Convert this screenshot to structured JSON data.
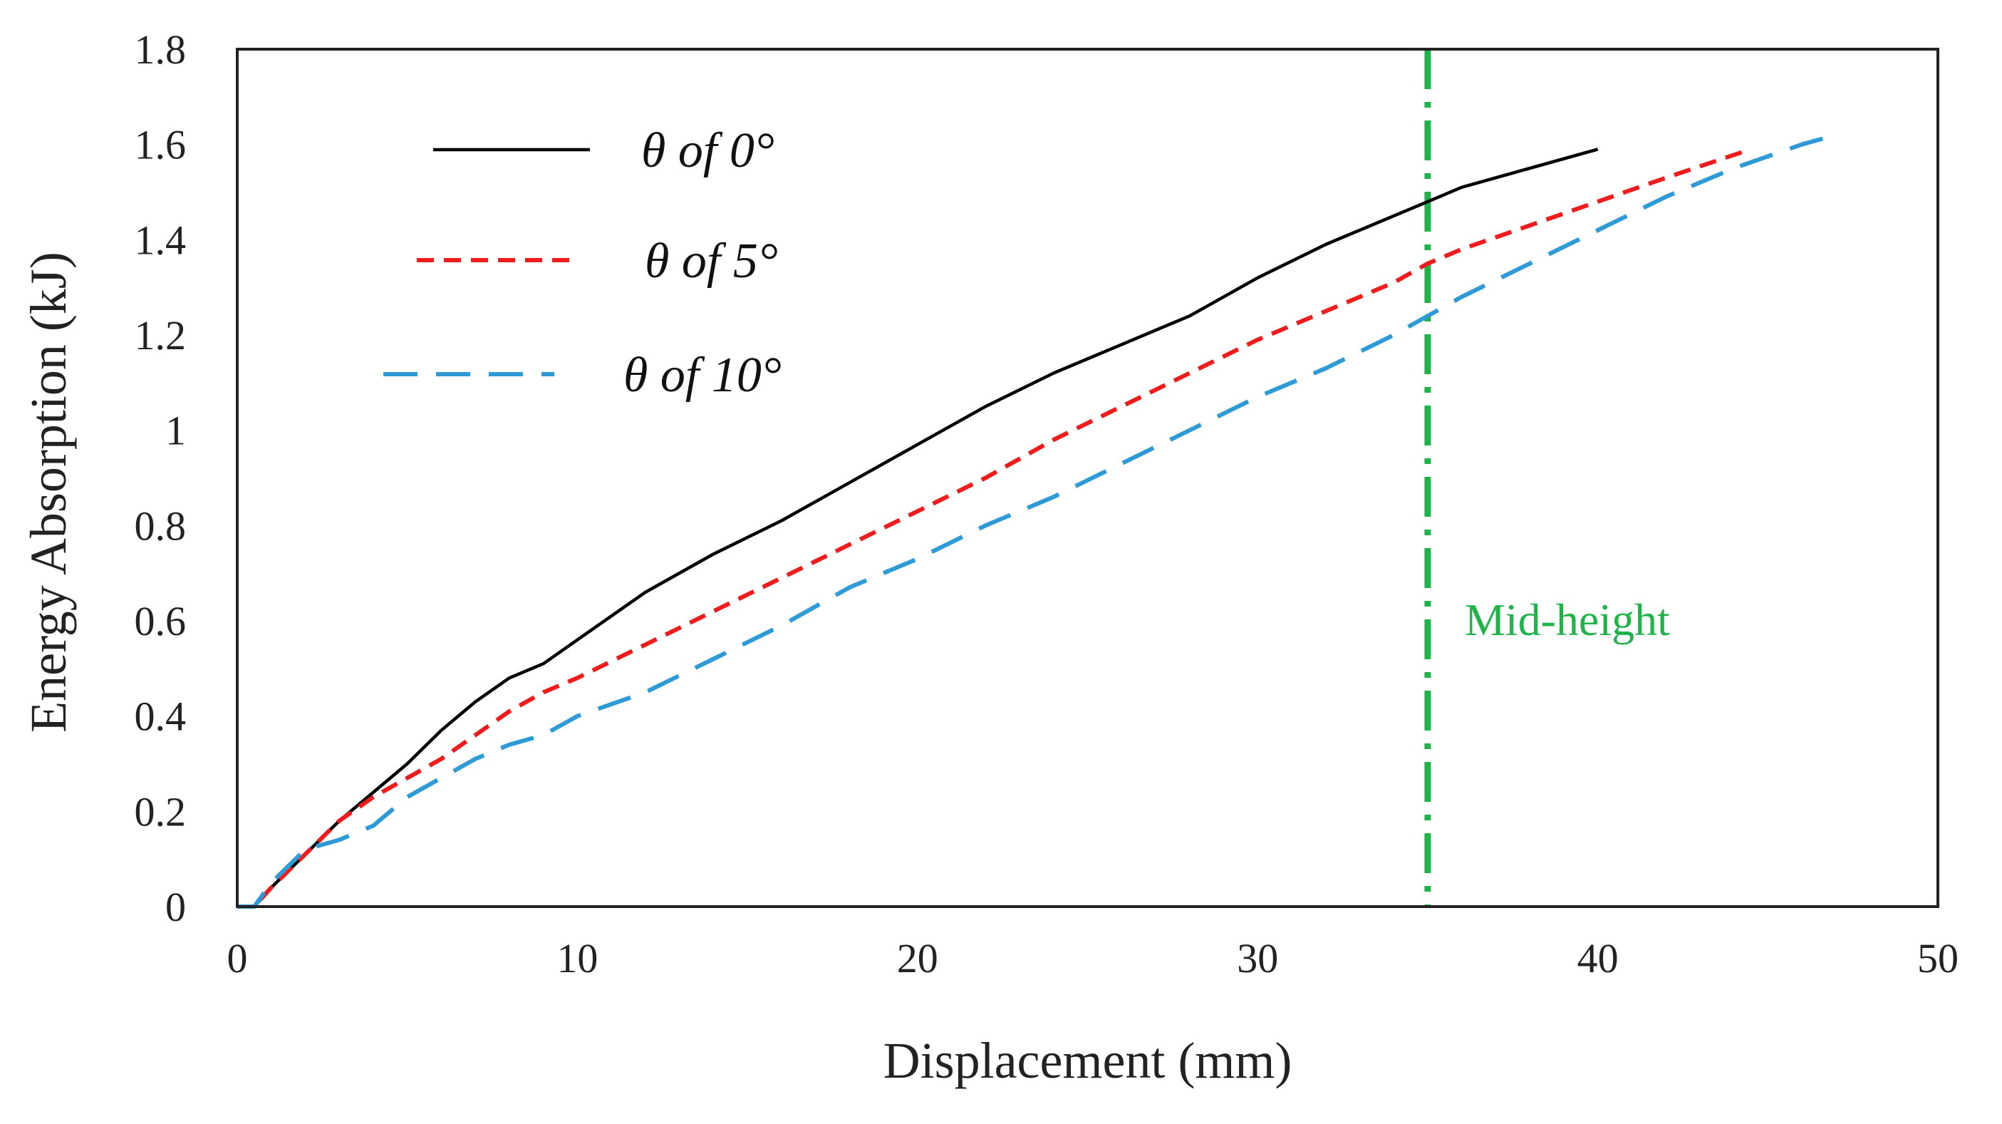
{
  "chart_data": {
    "type": "line",
    "title": "",
    "xlabel": "Displacement (mm)",
    "ylabel": "Energy Absorption (kJ)",
    "xlim": [
      0,
      50
    ],
    "ylim": [
      0,
      1.8
    ],
    "xticks": [
      0,
      10,
      20,
      30,
      40,
      50
    ],
    "yticks": [
      0,
      0.2,
      0.4,
      0.6,
      0.8,
      1,
      1.2,
      1.4,
      1.6,
      1.8
    ],
    "xtick_labels": [
      "0",
      "10",
      "20",
      "30",
      "40",
      "50"
    ],
    "ytick_labels": [
      "0",
      "0.2",
      "0.4",
      "0.6",
      "0.8",
      "1",
      "1.2",
      "1.4",
      "1.6",
      "1.8"
    ],
    "grid": false,
    "legend_position": "top-left",
    "series": [
      {
        "name": "θ of 0°",
        "color": "#000000",
        "dash": "solid",
        "x": [
          0,
          0.5,
          1,
          2,
          3,
          4,
          5,
          6,
          7,
          8,
          9,
          10,
          12,
          14,
          16,
          18,
          20,
          22,
          24,
          26,
          28,
          30,
          32,
          34,
          35,
          36,
          38,
          40
        ],
        "y": [
          0,
          0,
          0.04,
          0.11,
          0.18,
          0.24,
          0.3,
          0.37,
          0.43,
          0.48,
          0.51,
          0.56,
          0.66,
          0.74,
          0.81,
          0.89,
          0.97,
          1.05,
          1.12,
          1.18,
          1.24,
          1.32,
          1.39,
          1.45,
          1.48,
          1.51,
          1.55,
          1.59
        ]
      },
      {
        "name": "θ of 5°",
        "color": "#ee1c1c",
        "dash": "short-dash",
        "x": [
          0,
          0.5,
          1,
          2,
          3,
          4,
          5,
          6,
          7,
          8,
          9,
          10,
          12,
          14,
          16,
          18,
          20,
          22,
          24,
          26,
          28,
          30,
          32,
          34,
          35,
          36,
          38,
          40,
          42,
          44.5
        ],
        "y": [
          0,
          0,
          0.04,
          0.11,
          0.18,
          0.23,
          0.27,
          0.31,
          0.36,
          0.41,
          0.45,
          0.48,
          0.55,
          0.62,
          0.69,
          0.76,
          0.83,
          0.9,
          0.98,
          1.05,
          1.12,
          1.19,
          1.25,
          1.31,
          1.35,
          1.38,
          1.43,
          1.48,
          1.53,
          1.59
        ]
      },
      {
        "name": "θ of 10°",
        "color": "#2e9ad6",
        "dash": "long-dash",
        "x": [
          0,
          0.5,
          1,
          2,
          3,
          4,
          5,
          6,
          7,
          8,
          9,
          10,
          12,
          14,
          16,
          18,
          20,
          22,
          24,
          26,
          28,
          30,
          32,
          34,
          35,
          36,
          38,
          40,
          42,
          44,
          46,
          47
        ],
        "y": [
          0,
          0,
          0.05,
          0.12,
          0.14,
          0.17,
          0.23,
          0.27,
          0.31,
          0.34,
          0.36,
          0.4,
          0.45,
          0.52,
          0.59,
          0.67,
          0.73,
          0.8,
          0.86,
          0.93,
          1.0,
          1.07,
          1.13,
          1.2,
          1.24,
          1.28,
          1.35,
          1.42,
          1.49,
          1.55,
          1.6,
          1.62
        ]
      }
    ],
    "reference_line": {
      "x": 35,
      "label": "Mid-height",
      "color": "#1fb34a"
    }
  }
}
